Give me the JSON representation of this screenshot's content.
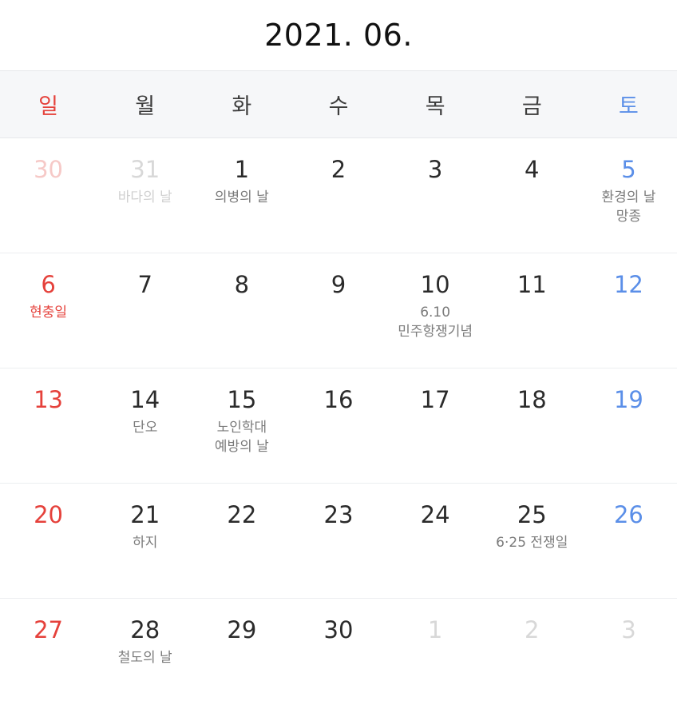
{
  "title": "2021. 06.",
  "weekdays": [
    "일",
    "월",
    "화",
    "수",
    "목",
    "금",
    "토"
  ],
  "weeks": [
    [
      {
        "day": "30",
        "notes": [],
        "other": true
      },
      {
        "day": "31",
        "notes": [
          "바다의 날"
        ],
        "other": true
      },
      {
        "day": "1",
        "notes": [
          "의병의 날"
        ]
      },
      {
        "day": "2",
        "notes": []
      },
      {
        "day": "3",
        "notes": []
      },
      {
        "day": "4",
        "notes": []
      },
      {
        "day": "5",
        "notes": [
          "환경의 날",
          "망종"
        ]
      }
    ],
    [
      {
        "day": "6",
        "notes": [
          "현충일"
        ],
        "holiday": true
      },
      {
        "day": "7",
        "notes": []
      },
      {
        "day": "8",
        "notes": []
      },
      {
        "day": "9",
        "notes": []
      },
      {
        "day": "10",
        "notes": [
          "6.10",
          "민주항쟁기념"
        ]
      },
      {
        "day": "11",
        "notes": []
      },
      {
        "day": "12",
        "notes": []
      }
    ],
    [
      {
        "day": "13",
        "notes": []
      },
      {
        "day": "14",
        "notes": [
          "단오"
        ]
      },
      {
        "day": "15",
        "notes": [
          "노인학대",
          "예방의 날"
        ]
      },
      {
        "day": "16",
        "notes": []
      },
      {
        "day": "17",
        "notes": []
      },
      {
        "day": "18",
        "notes": []
      },
      {
        "day": "19",
        "notes": []
      }
    ],
    [
      {
        "day": "20",
        "notes": []
      },
      {
        "day": "21",
        "notes": [
          "하지"
        ]
      },
      {
        "day": "22",
        "notes": []
      },
      {
        "day": "23",
        "notes": []
      },
      {
        "day": "24",
        "notes": []
      },
      {
        "day": "25",
        "notes": [
          "6·25 전쟁일"
        ]
      },
      {
        "day": "26",
        "notes": []
      }
    ],
    [
      {
        "day": "27",
        "notes": []
      },
      {
        "day": "28",
        "notes": [
          "철도의 날"
        ]
      },
      {
        "day": "29",
        "notes": []
      },
      {
        "day": "30",
        "notes": []
      },
      {
        "day": "1",
        "notes": [],
        "other": true
      },
      {
        "day": "2",
        "notes": [],
        "other": true
      },
      {
        "day": "3",
        "notes": [],
        "other": true
      }
    ]
  ],
  "colors": {
    "sunday": "#e5413b",
    "saturday": "#5b8fe8",
    "weekday_text": "#2b2b2b",
    "note_text": "#7b7b7b",
    "muted": "#d8d8d8",
    "header_bg": "#f6f7f9"
  }
}
